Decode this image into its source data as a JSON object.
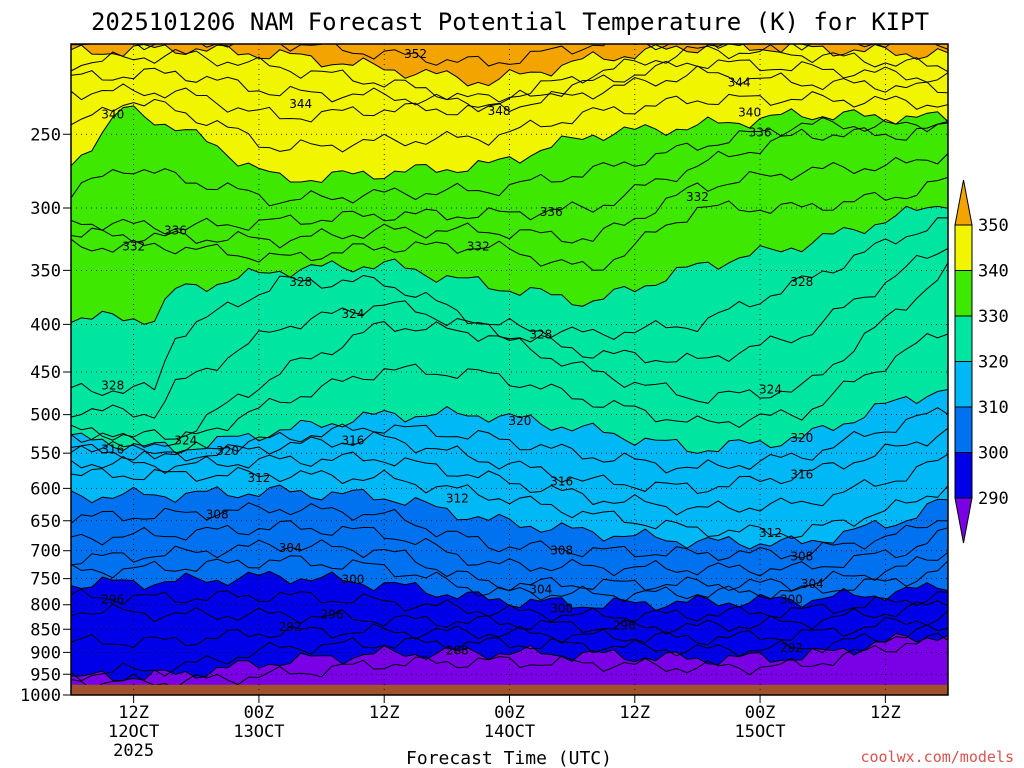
{
  "chart_data": {
    "type": "heatmap",
    "title": "2025101206 NAM Forecast Potential Temperature (K) for KIPT",
    "xlabel": "Forecast Time (UTC)",
    "ylabel": "",
    "credit": "coolwx.com/models",
    "units": "K",
    "x_range_hours": [
      0,
      84
    ],
    "x_ticks": [
      {
        "hour": 6,
        "lines": [
          "12Z",
          "12OCT",
          "2025"
        ]
      },
      {
        "hour": 18,
        "lines": [
          "00Z",
          "13OCT"
        ]
      },
      {
        "hour": 30,
        "lines": [
          "12Z"
        ]
      },
      {
        "hour": 42,
        "lines": [
          "00Z",
          "14OCT"
        ]
      },
      {
        "hour": 54,
        "lines": [
          "12Z"
        ]
      },
      {
        "hour": 66,
        "lines": [
          "00Z",
          "15OCT"
        ]
      },
      {
        "hour": 78,
        "lines": [
          "12Z"
        ]
      }
    ],
    "y_axis": "pressure (hPa), log scale, inverted",
    "y_range": [
      1000,
      200
    ],
    "y_ticks": [
      250,
      300,
      350,
      400,
      450,
      500,
      550,
      600,
      650,
      700,
      750,
      800,
      850,
      900,
      950,
      1000
    ],
    "contour_interval": 2,
    "contour_labels": [
      {
        "value": 352,
        "hour": 33,
        "p": 205
      },
      {
        "value": 344,
        "hour": 22,
        "p": 232
      },
      {
        "value": 348,
        "hour": 41,
        "p": 236
      },
      {
        "value": 344,
        "hour": 64,
        "p": 220
      },
      {
        "value": 340,
        "hour": 4,
        "p": 238
      },
      {
        "value": 340,
        "hour": 65,
        "p": 237
      },
      {
        "value": 336,
        "hour": 66,
        "p": 249
      },
      {
        "value": 332,
        "hour": 60,
        "p": 292
      },
      {
        "value": 336,
        "hour": 46,
        "p": 303
      },
      {
        "value": 336,
        "hour": 10,
        "p": 317
      },
      {
        "value": 332,
        "hour": 39,
        "p": 330
      },
      {
        "value": 332,
        "hour": 6,
        "p": 330
      },
      {
        "value": 328,
        "hour": 22,
        "p": 360
      },
      {
        "value": 328,
        "hour": 70,
        "p": 360
      },
      {
        "value": 324,
        "hour": 27,
        "p": 390
      },
      {
        "value": 328,
        "hour": 45,
        "p": 410
      },
      {
        "value": 328,
        "hour": 4,
        "p": 465
      },
      {
        "value": 324,
        "hour": 67,
        "p": 470
      },
      {
        "value": 320,
        "hour": 43,
        "p": 508
      },
      {
        "value": 324,
        "hour": 11,
        "p": 533
      },
      {
        "value": 320,
        "hour": 70,
        "p": 530
      },
      {
        "value": 316,
        "hour": 4,
        "p": 545
      },
      {
        "value": 320,
        "hour": 15,
        "p": 547
      },
      {
        "value": 316,
        "hour": 27,
        "p": 533
      },
      {
        "value": 316,
        "hour": 47,
        "p": 590
      },
      {
        "value": 316,
        "hour": 70,
        "p": 580
      },
      {
        "value": 312,
        "hour": 18,
        "p": 585
      },
      {
        "value": 312,
        "hour": 37,
        "p": 615
      },
      {
        "value": 308,
        "hour": 14,
        "p": 640
      },
      {
        "value": 312,
        "hour": 67,
        "p": 670
      },
      {
        "value": 304,
        "hour": 21,
        "p": 695
      },
      {
        "value": 308,
        "hour": 47,
        "p": 700
      },
      {
        "value": 308,
        "hour": 70,
        "p": 710
      },
      {
        "value": 300,
        "hour": 27,
        "p": 752
      },
      {
        "value": 304,
        "hour": 45,
        "p": 770
      },
      {
        "value": 304,
        "hour": 71,
        "p": 760
      },
      {
        "value": 296,
        "hour": 4,
        "p": 790
      },
      {
        "value": 300,
        "hour": 47,
        "p": 807
      },
      {
        "value": 300,
        "hour": 69,
        "p": 790
      },
      {
        "value": 296,
        "hour": 25,
        "p": 820
      },
      {
        "value": 292,
        "hour": 21,
        "p": 845
      },
      {
        "value": 296,
        "hour": 53,
        "p": 842
      },
      {
        "value": 288,
        "hour": 37,
        "p": 896
      },
      {
        "value": 292,
        "hour": 69,
        "p": 890
      }
    ],
    "colorbar": {
      "labels": [
        350,
        340,
        330,
        320,
        310,
        300,
        290
      ],
      "colors": [
        "#f4a400",
        "#f2f500",
        "#3fe800",
        "#00e6a0",
        "#00b8f5",
        "#0072f0",
        "#0000e8",
        "#7a00e6"
      ]
    },
    "terrain_color": "#a0522d"
  }
}
